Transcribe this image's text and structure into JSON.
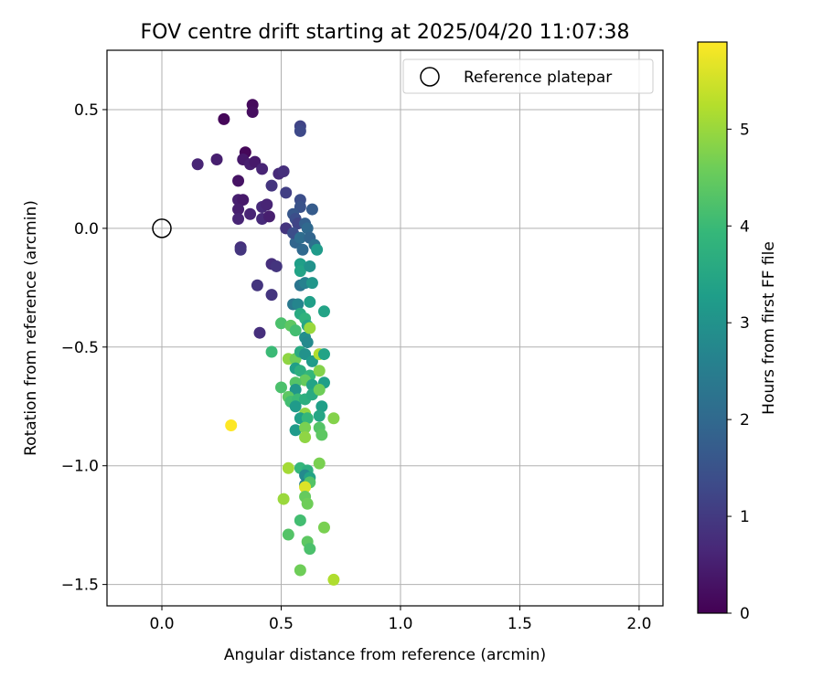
{
  "chart_data": {
    "type": "scatter",
    "title": "FOV centre drift starting at 2025/04/20 11:07:38",
    "xlabel": "Angular distance from reference (arcmin)",
    "ylabel": "Rotation from reference (arcmin)",
    "xlim": [
      -0.23,
      2.1
    ],
    "ylim": [
      -1.59,
      0.75
    ],
    "xticks": [
      0.0,
      0.5,
      1.0,
      1.5,
      2.0
    ],
    "xtick_labels": [
      "0.0",
      "0.5",
      "1.0",
      "1.5",
      "2.0"
    ],
    "yticks": [
      0.5,
      0.0,
      -0.5,
      -1.0,
      -1.5
    ],
    "ytick_labels": [
      "0.5",
      "0.0",
      "−0.5",
      "−1.0",
      "−1.5"
    ],
    "grid": true,
    "legend": {
      "position": "upper-right",
      "entries": [
        "Reference platepar"
      ]
    },
    "reference_point": {
      "x": 0.0,
      "y": 0.0
    },
    "colorbar": {
      "label": "Hours from first FF file",
      "colormap": "viridis",
      "range": [
        0,
        5.9
      ],
      "ticks": [
        0,
        1,
        2,
        3,
        4,
        5
      ],
      "tick_labels": [
        "0",
        "1",
        "2",
        "3",
        "4",
        "5"
      ]
    },
    "points": [
      {
        "x": 0.26,
        "y": 0.46,
        "h": 0.1
      },
      {
        "x": 0.38,
        "y": 0.52,
        "h": 0.15
      },
      {
        "x": 0.38,
        "y": 0.49,
        "h": 0.2
      },
      {
        "x": 0.35,
        "y": 0.32,
        "h": 0.1
      },
      {
        "x": 0.15,
        "y": 0.27,
        "h": 0.6
      },
      {
        "x": 0.23,
        "y": 0.29,
        "h": 0.5
      },
      {
        "x": 0.34,
        "y": 0.29,
        "h": 0.4
      },
      {
        "x": 0.37,
        "y": 0.27,
        "h": 0.5
      },
      {
        "x": 0.39,
        "y": 0.28,
        "h": 0.4
      },
      {
        "x": 0.42,
        "y": 0.25,
        "h": 0.6
      },
      {
        "x": 0.49,
        "y": 0.23,
        "h": 0.7
      },
      {
        "x": 0.51,
        "y": 0.24,
        "h": 0.8
      },
      {
        "x": 0.32,
        "y": 0.2,
        "h": 0.3
      },
      {
        "x": 0.32,
        "y": 0.12,
        "h": 0.5
      },
      {
        "x": 0.34,
        "y": 0.12,
        "h": 0.4
      },
      {
        "x": 0.32,
        "y": 0.08,
        "h": 0.5
      },
      {
        "x": 0.32,
        "y": 0.04,
        "h": 0.6
      },
      {
        "x": 0.37,
        "y": 0.06,
        "h": 0.6
      },
      {
        "x": 0.42,
        "y": 0.09,
        "h": 0.7
      },
      {
        "x": 0.44,
        "y": 0.1,
        "h": 0.6
      },
      {
        "x": 0.42,
        "y": 0.04,
        "h": 0.7
      },
      {
        "x": 0.45,
        "y": 0.05,
        "h": 0.5
      },
      {
        "x": 0.46,
        "y": 0.18,
        "h": 0.9
      },
      {
        "x": 0.52,
        "y": 0.15,
        "h": 1.1
      },
      {
        "x": 0.58,
        "y": 0.43,
        "h": 1.2
      },
      {
        "x": 0.58,
        "y": 0.41,
        "h": 1.3
      },
      {
        "x": 0.58,
        "y": 0.12,
        "h": 1.4
      },
      {
        "x": 0.58,
        "y": 0.09,
        "h": 1.5
      },
      {
        "x": 0.63,
        "y": 0.08,
        "h": 1.7
      },
      {
        "x": 0.52,
        "y": 0.0,
        "h": 0.9
      },
      {
        "x": 0.55,
        "y": 0.06,
        "h": 1.6
      },
      {
        "x": 0.56,
        "y": 0.04,
        "h": 1.4
      },
      {
        "x": 0.57,
        "y": 0.02,
        "h": 1.2
      },
      {
        "x": 0.56,
        "y": -0.06,
        "h": 1.9
      },
      {
        "x": 0.55,
        "y": -0.02,
        "h": 1.4
      },
      {
        "x": 0.6,
        "y": 0.02,
        "h": 1.8
      },
      {
        "x": 0.61,
        "y": 0.0,
        "h": 2.0
      },
      {
        "x": 0.58,
        "y": -0.04,
        "h": 2.1
      },
      {
        "x": 0.62,
        "y": -0.04,
        "h": 1.9
      },
      {
        "x": 0.59,
        "y": -0.09,
        "h": 2.0
      },
      {
        "x": 0.64,
        "y": -0.07,
        "h": 2.2
      },
      {
        "x": 0.65,
        "y": -0.09,
        "h": 3.2
      },
      {
        "x": 0.33,
        "y": -0.08,
        "h": 0.8
      },
      {
        "x": 0.33,
        "y": -0.09,
        "h": 0.9
      },
      {
        "x": 0.46,
        "y": -0.15,
        "h": 0.8
      },
      {
        "x": 0.48,
        "y": -0.16,
        "h": 0.9
      },
      {
        "x": 0.4,
        "y": -0.24,
        "h": 0.9
      },
      {
        "x": 0.46,
        "y": -0.28,
        "h": 0.9
      },
      {
        "x": 0.41,
        "y": -0.44,
        "h": 0.8
      },
      {
        "x": 0.58,
        "y": -0.15,
        "h": 3.3
      },
      {
        "x": 0.58,
        "y": -0.18,
        "h": 3.4
      },
      {
        "x": 0.62,
        "y": -0.16,
        "h": 3.0
      },
      {
        "x": 0.58,
        "y": -0.24,
        "h": 2.3
      },
      {
        "x": 0.6,
        "y": -0.23,
        "h": 2.6
      },
      {
        "x": 0.63,
        "y": -0.23,
        "h": 3.1
      },
      {
        "x": 0.55,
        "y": -0.32,
        "h": 2.4
      },
      {
        "x": 0.57,
        "y": -0.32,
        "h": 2.7
      },
      {
        "x": 0.62,
        "y": -0.31,
        "h": 3.3
      },
      {
        "x": 0.68,
        "y": -0.35,
        "h": 3.4
      },
      {
        "x": 0.58,
        "y": -0.36,
        "h": 3.6
      },
      {
        "x": 0.6,
        "y": -0.38,
        "h": 3.8
      },
      {
        "x": 0.61,
        "y": -0.41,
        "h": 3.5
      },
      {
        "x": 0.5,
        "y": -0.4,
        "h": 4.2
      },
      {
        "x": 0.54,
        "y": -0.41,
        "h": 4.4
      },
      {
        "x": 0.56,
        "y": -0.43,
        "h": 4.1
      },
      {
        "x": 0.6,
        "y": -0.46,
        "h": 2.9
      },
      {
        "x": 0.61,
        "y": -0.48,
        "h": 2.8
      },
      {
        "x": 0.62,
        "y": -0.42,
        "h": 5.0
      },
      {
        "x": 0.46,
        "y": -0.52,
        "h": 4.0
      },
      {
        "x": 0.53,
        "y": -0.55,
        "h": 4.9
      },
      {
        "x": 0.56,
        "y": -0.55,
        "h": 4.6
      },
      {
        "x": 0.58,
        "y": -0.52,
        "h": 3.6
      },
      {
        "x": 0.6,
        "y": -0.53,
        "h": 3.0
      },
      {
        "x": 0.63,
        "y": -0.56,
        "h": 3.2
      },
      {
        "x": 0.66,
        "y": -0.53,
        "h": 5.2
      },
      {
        "x": 0.68,
        "y": -0.53,
        "h": 3.4
      },
      {
        "x": 0.56,
        "y": -0.59,
        "h": 3.3
      },
      {
        "x": 0.58,
        "y": -0.6,
        "h": 3.7
      },
      {
        "x": 0.62,
        "y": -0.62,
        "h": 3.9
      },
      {
        "x": 0.6,
        "y": -0.64,
        "h": 4.5
      },
      {
        "x": 0.66,
        "y": -0.6,
        "h": 4.8
      },
      {
        "x": 0.56,
        "y": -0.65,
        "h": 4.3
      },
      {
        "x": 0.56,
        "y": -0.68,
        "h": 3.1
      },
      {
        "x": 0.63,
        "y": -0.66,
        "h": 3.4
      },
      {
        "x": 0.68,
        "y": -0.65,
        "h": 3.3
      },
      {
        "x": 0.5,
        "y": -0.67,
        "h": 4.2
      },
      {
        "x": 0.53,
        "y": -0.71,
        "h": 4.4
      },
      {
        "x": 0.54,
        "y": -0.73,
        "h": 4.1
      },
      {
        "x": 0.57,
        "y": -0.72,
        "h": 4.0
      },
      {
        "x": 0.6,
        "y": -0.72,
        "h": 3.7
      },
      {
        "x": 0.63,
        "y": -0.7,
        "h": 3.6
      },
      {
        "x": 0.66,
        "y": -0.68,
        "h": 4.6
      },
      {
        "x": 0.56,
        "y": -0.75,
        "h": 3.2
      },
      {
        "x": 0.6,
        "y": -0.78,
        "h": 4.9
      },
      {
        "x": 0.58,
        "y": -0.8,
        "h": 3.3
      },
      {
        "x": 0.61,
        "y": -0.8,
        "h": 3.9
      },
      {
        "x": 0.67,
        "y": -0.75,
        "h": 3.3
      },
      {
        "x": 0.66,
        "y": -0.79,
        "h": 3.5
      },
      {
        "x": 0.72,
        "y": -0.8,
        "h": 4.8
      },
      {
        "x": 0.56,
        "y": -0.85,
        "h": 3.2
      },
      {
        "x": 0.6,
        "y": -0.84,
        "h": 4.7
      },
      {
        "x": 0.6,
        "y": -0.88,
        "h": 4.9
      },
      {
        "x": 0.66,
        "y": -0.84,
        "h": 4.3
      },
      {
        "x": 0.67,
        "y": -0.87,
        "h": 4.4
      },
      {
        "x": 0.29,
        "y": -0.83,
        "h": 5.9
      },
      {
        "x": 0.53,
        "y": -1.01,
        "h": 5.1
      },
      {
        "x": 0.58,
        "y": -1.01,
        "h": 3.9
      },
      {
        "x": 0.61,
        "y": -1.02,
        "h": 3.7
      },
      {
        "x": 0.6,
        "y": -1.04,
        "h": 2.8
      },
      {
        "x": 0.62,
        "y": -1.05,
        "h": 3.4
      },
      {
        "x": 0.66,
        "y": -0.99,
        "h": 4.7
      },
      {
        "x": 0.6,
        "y": -1.08,
        "h": 2.6
      },
      {
        "x": 0.62,
        "y": -1.07,
        "h": 4.3
      },
      {
        "x": 0.6,
        "y": -1.09,
        "h": 5.6
      },
      {
        "x": 0.51,
        "y": -1.14,
        "h": 5.0
      },
      {
        "x": 0.6,
        "y": -1.13,
        "h": 4.5
      },
      {
        "x": 0.61,
        "y": -1.16,
        "h": 4.6
      },
      {
        "x": 0.58,
        "y": -1.23,
        "h": 4.1
      },
      {
        "x": 0.68,
        "y": -1.26,
        "h": 4.7
      },
      {
        "x": 0.53,
        "y": -1.29,
        "h": 4.3
      },
      {
        "x": 0.61,
        "y": -1.32,
        "h": 4.4
      },
      {
        "x": 0.62,
        "y": -1.35,
        "h": 4.2
      },
      {
        "x": 0.58,
        "y": -1.44,
        "h": 4.6
      },
      {
        "x": 0.72,
        "y": -1.48,
        "h": 5.2
      }
    ]
  }
}
